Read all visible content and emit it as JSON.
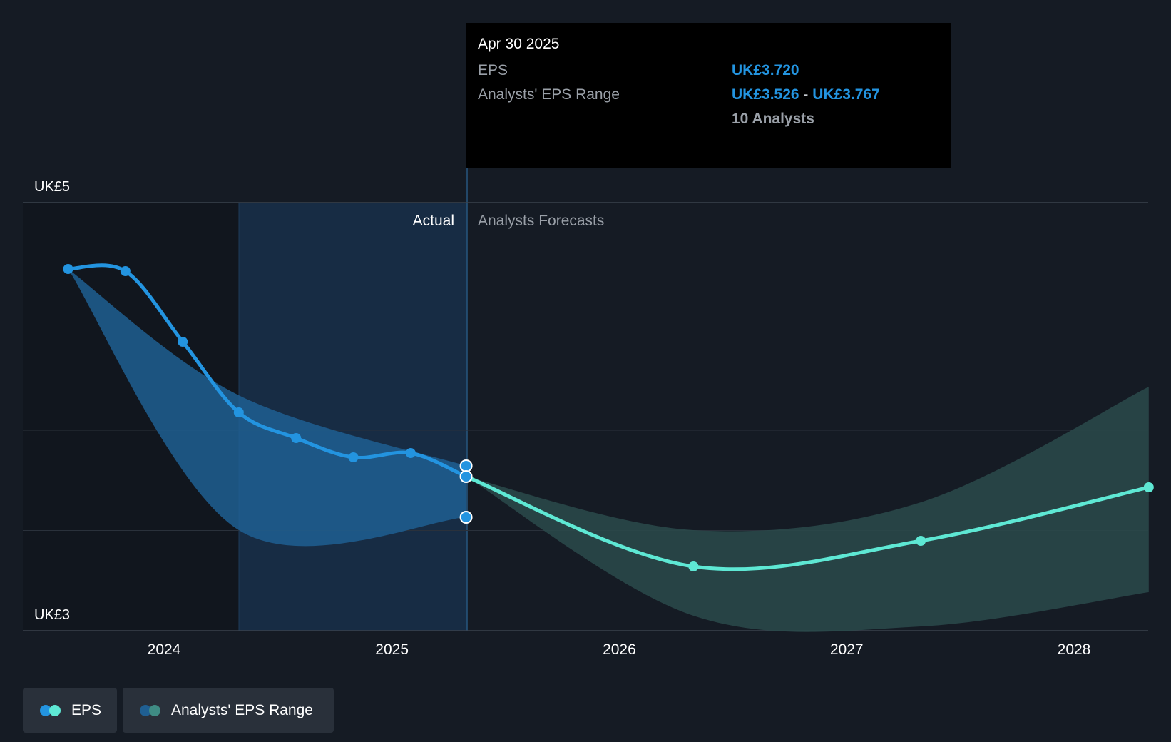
{
  "chart_data": {
    "type": "line",
    "y_axis_labels": [
      "UK£5",
      "UK£3"
    ],
    "ylim": [
      3,
      5
    ],
    "x_ticks": [
      "2024",
      "2025",
      "2026",
      "2027",
      "2028"
    ],
    "region_labels": {
      "actual": "Actual",
      "forecast": "Analysts Forecasts"
    },
    "colors": {
      "actual": "#2394e0",
      "forecast": "#5ee8d4",
      "actual_band": "#1f5f92",
      "forecast_band": "#2a4a4b"
    },
    "series": [
      {
        "name": "EPS",
        "actual": [
          {
            "x": "2023-07-31",
            "y": 4.69
          },
          {
            "x": "2023-10-31",
            "y": 4.68
          },
          {
            "x": "2024-01-31",
            "y": 4.35
          },
          {
            "x": "2024-04-30",
            "y": 4.02
          },
          {
            "x": "2024-07-31",
            "y": 3.9
          },
          {
            "x": "2024-10-31",
            "y": 3.81
          },
          {
            "x": "2025-01-31",
            "y": 3.83
          },
          {
            "x": "2025-04-30",
            "y": 3.72
          }
        ],
        "forecast": [
          {
            "x": "2025-04-30",
            "y": 3.72
          },
          {
            "x": "2026-04-30",
            "y": 3.3
          },
          {
            "x": "2027-04-30",
            "y": 3.42
          },
          {
            "x": "2028-04-30",
            "y": 3.67
          }
        ]
      },
      {
        "name": "Analysts' EPS Range",
        "actual": [
          {
            "x": "2023-07-31",
            "low": 4.69,
            "high": 4.69
          },
          {
            "x": "2024-04-30",
            "low": 3.47,
            "high": 4.1
          },
          {
            "x": "2025-04-30",
            "low": 3.53,
            "high": 3.77
          }
        ],
        "forecast": [
          {
            "x": "2025-04-30",
            "low": 3.72,
            "high": 3.72
          },
          {
            "x": "2026-04-30",
            "low": 3.07,
            "high": 3.47
          },
          {
            "x": "2027-04-30",
            "low": 3.02,
            "high": 3.6
          },
          {
            "x": "2028-04-30",
            "low": 3.18,
            "high": 4.14
          }
        ]
      }
    ]
  },
  "tooltip": {
    "date": "Apr 30 2025",
    "eps_label": "EPS",
    "eps_value": "UK£3.720",
    "range_label": "Analysts' EPS Range",
    "range_low": "UK£3.526",
    "range_sep": "-",
    "range_high": "UK£3.767",
    "analysts": "10 Analysts"
  },
  "legend": {
    "eps": "EPS",
    "range": "Analysts' EPS Range"
  }
}
